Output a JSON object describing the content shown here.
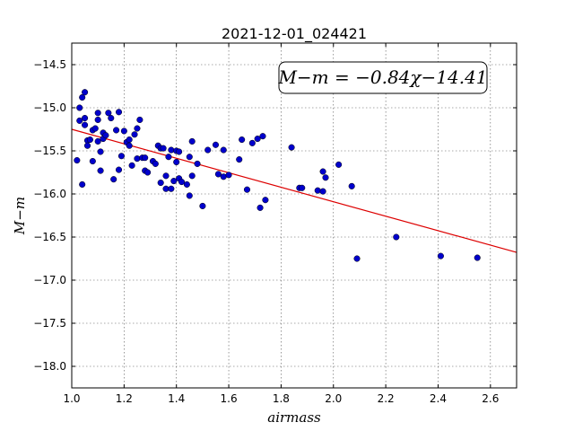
{
  "chart_data": {
    "type": "scatter",
    "title": "2021-12-01_024421",
    "xlabel": "airmass",
    "ylabel": "M−m",
    "xlim": [
      1.0,
      2.7
    ],
    "ylim": [
      -18.25,
      -14.25
    ],
    "xticks": [
      1.0,
      1.2,
      1.4,
      1.6,
      1.8,
      2.0,
      2.2,
      2.4,
      2.6
    ],
    "xtick_labels": [
      "1.0",
      "1.2",
      "1.4",
      "1.6",
      "1.8",
      "2.0",
      "2.2",
      "2.4",
      "2.6"
    ],
    "yticks": [
      -14.5,
      -15.0,
      -15.5,
      -16.0,
      -16.5,
      -17.0,
      -17.5,
      -18.0
    ],
    "ytick_labels": [
      "−14.5",
      "−15.0",
      "−15.5",
      "−16.0",
      "−16.5",
      "−17.0",
      "−17.5",
      "−18.0"
    ],
    "grid": true,
    "annotation": "M−m = −0.84χ−14.41",
    "fit": {
      "slope": -0.84,
      "intercept": -14.41,
      "color": "#dd0000"
    },
    "point_color": "#0000cc",
    "points": [
      [
        1.02,
        -15.61
      ],
      [
        1.03,
        -15.15
      ],
      [
        1.03,
        -15.0
      ],
      [
        1.04,
        -14.88
      ],
      [
        1.05,
        -14.82
      ],
      [
        1.04,
        -15.89
      ],
      [
        1.05,
        -15.12
      ],
      [
        1.05,
        -15.2
      ],
      [
        1.06,
        -15.38
      ],
      [
        1.06,
        -15.44
      ],
      [
        1.07,
        -15.37
      ],
      [
        1.08,
        -15.26
      ],
      [
        1.08,
        -15.62
      ],
      [
        1.09,
        -15.24
      ],
      [
        1.1,
        -15.14
      ],
      [
        1.1,
        -15.06
      ],
      [
        1.1,
        -15.39
      ],
      [
        1.11,
        -15.73
      ],
      [
        1.11,
        -15.51
      ],
      [
        1.12,
        -15.29
      ],
      [
        1.12,
        -15.36
      ],
      [
        1.13,
        -15.32
      ],
      [
        1.14,
        -15.06
      ],
      [
        1.15,
        -15.12
      ],
      [
        1.16,
        -15.83
      ],
      [
        1.17,
        -15.26
      ],
      [
        1.18,
        -15.72
      ],
      [
        1.18,
        -15.05
      ],
      [
        1.19,
        -15.56
      ],
      [
        1.2,
        -15.27
      ],
      [
        1.21,
        -15.4
      ],
      [
        1.22,
        -15.37
      ],
      [
        1.22,
        -15.44
      ],
      [
        1.23,
        -15.67
      ],
      [
        1.24,
        -15.31
      ],
      [
        1.25,
        -15.59
      ],
      [
        1.25,
        -15.24
      ],
      [
        1.26,
        -15.14
      ],
      [
        1.27,
        -15.58
      ],
      [
        1.28,
        -15.73
      ],
      [
        1.28,
        -15.58
      ],
      [
        1.29,
        -15.75
      ],
      [
        1.31,
        -15.62
      ],
      [
        1.32,
        -15.65
      ],
      [
        1.33,
        -15.44
      ],
      [
        1.34,
        -15.47
      ],
      [
        1.34,
        -15.87
      ],
      [
        1.35,
        -15.47
      ],
      [
        1.36,
        -15.94
      ],
      [
        1.36,
        -15.79
      ],
      [
        1.37,
        -15.57
      ],
      [
        1.38,
        -15.49
      ],
      [
        1.38,
        -15.94
      ],
      [
        1.39,
        -15.85
      ],
      [
        1.4,
        -15.5
      ],
      [
        1.4,
        -15.63
      ],
      [
        1.41,
        -15.82
      ],
      [
        1.41,
        -15.51
      ],
      [
        1.42,
        -15.86
      ],
      [
        1.44,
        -15.89
      ],
      [
        1.45,
        -16.02
      ],
      [
        1.45,
        -15.57
      ],
      [
        1.46,
        -15.79
      ],
      [
        1.46,
        -15.39
      ],
      [
        1.48,
        -15.65
      ],
      [
        1.5,
        -16.14
      ],
      [
        1.52,
        -15.49
      ],
      [
        1.55,
        -15.43
      ],
      [
        1.56,
        -15.77
      ],
      [
        1.58,
        -15.8
      ],
      [
        1.58,
        -15.49
      ],
      [
        1.6,
        -15.78
      ],
      [
        1.64,
        -15.6
      ],
      [
        1.65,
        -15.37
      ],
      [
        1.67,
        -15.95
      ],
      [
        1.69,
        -15.41
      ],
      [
        1.71,
        -15.36
      ],
      [
        1.72,
        -16.16
      ],
      [
        1.73,
        -15.33
      ],
      [
        1.74,
        -16.07
      ],
      [
        1.84,
        -15.46
      ],
      [
        1.87,
        -15.93
      ],
      [
        1.88,
        -15.93
      ],
      [
        1.94,
        -15.96
      ],
      [
        1.96,
        -15.97
      ],
      [
        1.96,
        -15.74
      ],
      [
        1.97,
        -15.81
      ],
      [
        2.02,
        -15.66
      ],
      [
        2.07,
        -15.91
      ],
      [
        2.09,
        -16.75
      ],
      [
        2.24,
        -16.5
      ],
      [
        2.41,
        -16.72
      ],
      [
        2.55,
        -16.74
      ]
    ]
  }
}
